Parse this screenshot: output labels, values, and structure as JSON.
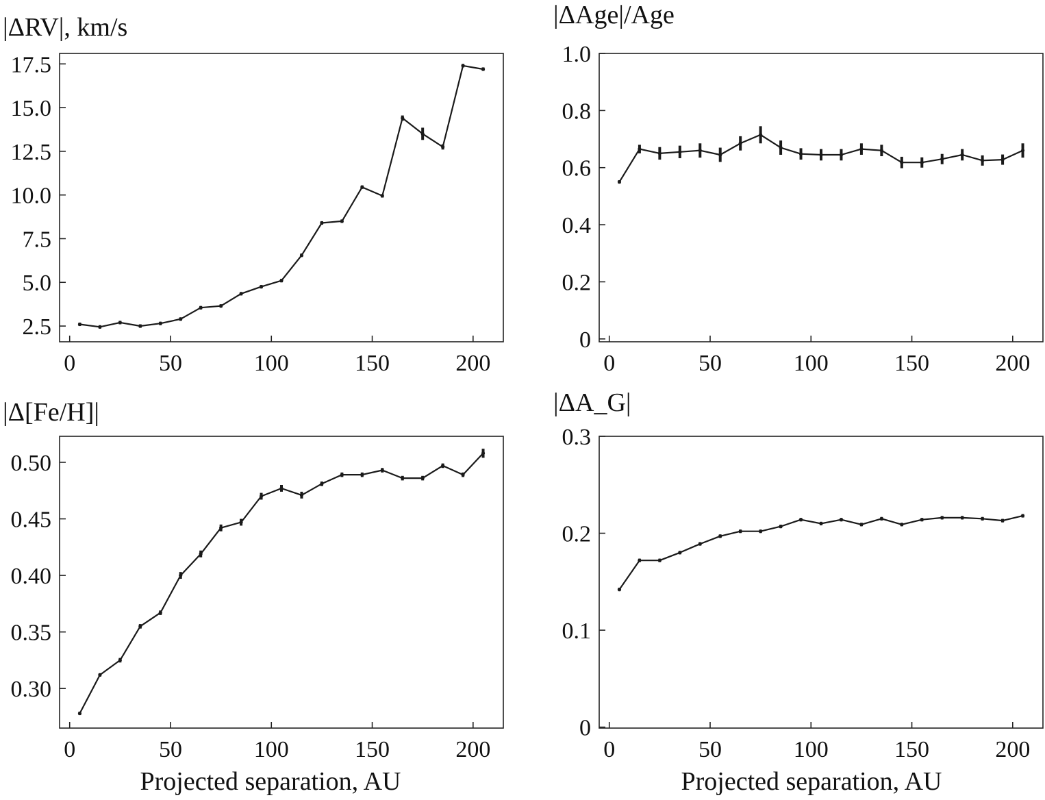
{
  "chart_data": [
    {
      "id": "rv",
      "type": "line",
      "title": "|ΔRV|, km/s",
      "xlabel": "",
      "ylabel": "|ΔRV|, km/s",
      "xlim": [
        -5,
        215
      ],
      "ylim": [
        1.6,
        18.1
      ],
      "xticks": [
        0,
        50,
        100,
        150,
        200
      ],
      "xtick_labels": [
        "0",
        "50",
        "100",
        "150",
        "200"
      ],
      "yticks": [
        2.5,
        5.0,
        7.5,
        10.0,
        12.5,
        15.0,
        17.5
      ],
      "ytick_labels": [
        "2.5",
        "5.0",
        "7.5",
        "10.0",
        "12.5",
        "15.0",
        "17.5"
      ],
      "x": [
        5,
        15,
        25,
        35,
        45,
        55,
        65,
        75,
        85,
        95,
        105,
        115,
        125,
        135,
        145,
        155,
        165,
        175,
        185,
        195,
        205
      ],
      "y": [
        2.6,
        2.45,
        2.7,
        2.5,
        2.65,
        2.9,
        3.55,
        3.65,
        4.35,
        4.75,
        5.1,
        6.55,
        8.4,
        8.5,
        10.45,
        9.95,
        14.4,
        13.5,
        12.75,
        17.4,
        17.2
      ],
      "yerr": [
        0.05,
        0.05,
        0.05,
        0.05,
        0.05,
        0.05,
        0.05,
        0.05,
        0.05,
        0.05,
        0.05,
        0.1,
        0.1,
        0.1,
        0.1,
        0.1,
        0.15,
        0.35,
        0.15,
        0.1,
        0.1
      ]
    },
    {
      "id": "age",
      "type": "line",
      "title": "|ΔAge|/Age",
      "xlabel": "",
      "ylabel": "|ΔAge|/Age",
      "xlim": [
        -5,
        215
      ],
      "ylim": [
        -0.01,
        1.0
      ],
      "xticks": [
        0,
        50,
        100,
        150,
        200
      ],
      "xtick_labels": [
        "0",
        "50",
        "100",
        "150",
        "200"
      ],
      "yticks": [
        0,
        0.2,
        0.4,
        0.6,
        0.8,
        1.0
      ],
      "ytick_labels": [
        "0",
        "0.2",
        "0.4",
        "0.6",
        "0.8",
        "1.0"
      ],
      "x": [
        5,
        15,
        25,
        35,
        45,
        55,
        65,
        75,
        85,
        95,
        105,
        115,
        125,
        135,
        145,
        155,
        165,
        175,
        185,
        195,
        205
      ],
      "y": [
        0.55,
        0.665,
        0.65,
        0.655,
        0.66,
        0.645,
        0.685,
        0.715,
        0.67,
        0.648,
        0.645,
        0.645,
        0.665,
        0.66,
        0.618,
        0.618,
        0.63,
        0.645,
        0.625,
        0.628,
        0.66
      ],
      "yerr": [
        0.004,
        0.015,
        0.022,
        0.022,
        0.025,
        0.025,
        0.025,
        0.03,
        0.025,
        0.02,
        0.02,
        0.02,
        0.02,
        0.02,
        0.02,
        0.018,
        0.018,
        0.02,
        0.018,
        0.018,
        0.025
      ]
    },
    {
      "id": "feh",
      "type": "line",
      "title": "|Δ[Fe/H]|",
      "xlabel": "Projected separation, AU",
      "ylabel": "|Δ[Fe/H]|",
      "xlim": [
        -5,
        215
      ],
      "ylim": [
        0.265,
        0.523
      ],
      "xticks": [
        0,
        50,
        100,
        150,
        200
      ],
      "xtick_labels": [
        "0",
        "50",
        "100",
        "150",
        "200"
      ],
      "yticks": [
        0.3,
        0.35,
        0.4,
        0.45,
        0.5
      ],
      "ytick_labels": [
        "0.30",
        "0.35",
        "0.40",
        "0.45",
        "0.50"
      ],
      "x": [
        5,
        15,
        25,
        35,
        45,
        55,
        65,
        75,
        85,
        95,
        105,
        115,
        125,
        135,
        145,
        155,
        165,
        175,
        185,
        195,
        205
      ],
      "y": [
        0.278,
        0.312,
        0.325,
        0.355,
        0.367,
        0.4,
        0.419,
        0.442,
        0.447,
        0.47,
        0.477,
        0.471,
        0.481,
        0.489,
        0.489,
        0.493,
        0.486,
        0.486,
        0.497,
        0.489,
        0.508
      ],
      "yerr": [
        0.001,
        0.001,
        0.002,
        0.002,
        0.002,
        0.003,
        0.003,
        0.003,
        0.003,
        0.003,
        0.003,
        0.003,
        0.002,
        0.002,
        0.002,
        0.002,
        0.002,
        0.002,
        0.002,
        0.002,
        0.004
      ]
    },
    {
      "id": "ag",
      "type": "line",
      "title": "|ΔA_G|",
      "xlabel": "Projected separation, AU",
      "ylabel": "|ΔA_G|",
      "xlim": [
        -5,
        215
      ],
      "ylim": [
        -0.001,
        0.3
      ],
      "xticks": [
        0,
        50,
        100,
        150,
        200
      ],
      "xtick_labels": [
        "0",
        "50",
        "100",
        "150",
        "200"
      ],
      "yticks": [
        0,
        0.1,
        0.2,
        0.3
      ],
      "ytick_labels": [
        "0",
        "0.1",
        "0.2",
        "0.3"
      ],
      "x": [
        5,
        15,
        25,
        35,
        45,
        55,
        65,
        75,
        85,
        95,
        105,
        115,
        125,
        135,
        145,
        155,
        165,
        175,
        185,
        195,
        205
      ],
      "y": [
        0.142,
        0.172,
        0.172,
        0.18,
        0.189,
        0.197,
        0.202,
        0.202,
        0.207,
        0.214,
        0.21,
        0.214,
        0.209,
        0.215,
        0.209,
        0.214,
        0.216,
        0.216,
        0.215,
        0.213,
        0.218
      ],
      "yerr": [
        0.0,
        0.0,
        0.001,
        0.001,
        0.001,
        0.001,
        0.001,
        0.001,
        0.001,
        0.001,
        0.001,
        0.001,
        0.001,
        0.001,
        0.001,
        0.001,
        0.001,
        0.001,
        0.001,
        0.001,
        0.001
      ]
    }
  ]
}
